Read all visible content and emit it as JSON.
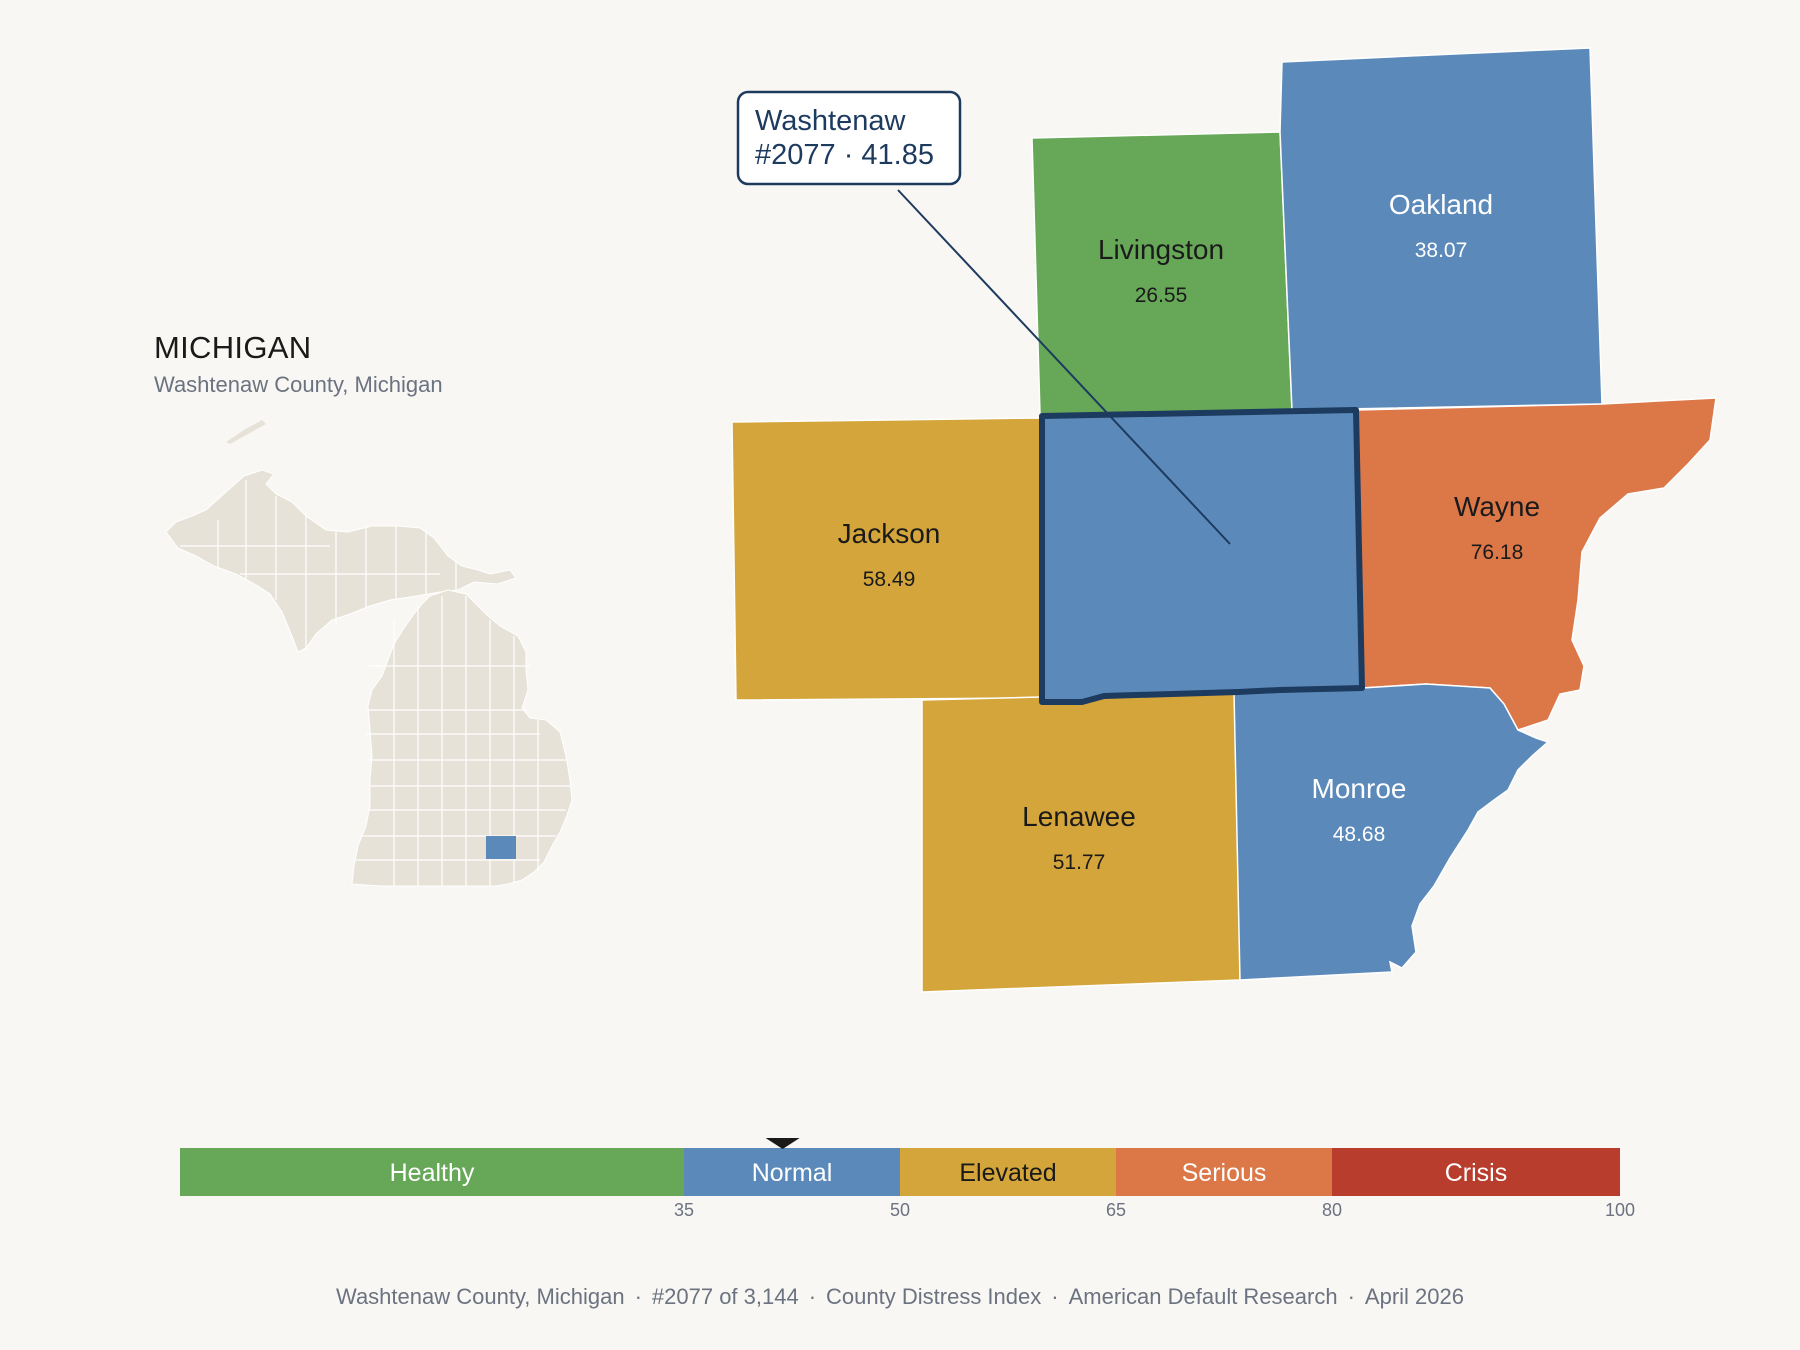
{
  "header": {
    "state": "MICHIGAN",
    "county_full": "Washtenaw County, Michigan"
  },
  "callout": {
    "line1": "Washtenaw",
    "line2": "#2077 · 41.85"
  },
  "counties": [
    {
      "id": "livingston",
      "name": "Livingston",
      "value": "26.55",
      "color": "#67a758",
      "label_color": "#1a1a1a"
    },
    {
      "id": "oakland",
      "name": "Oakland",
      "value": "38.07",
      "color": "#5b8aba",
      "label_color": "#ffffff"
    },
    {
      "id": "jackson",
      "name": "Jackson",
      "value": "58.49",
      "color": "#d4a53a",
      "label_color": "#1a1a1a"
    },
    {
      "id": "washtenaw",
      "name": "Washtenaw",
      "value": "41.85",
      "color": "#5b8aba",
      "label_color": "#ffffff"
    },
    {
      "id": "wayne",
      "name": "Wayne",
      "value": "76.18",
      "color": "#dc7748",
      "label_color": "#1a1a1a"
    },
    {
      "id": "lenawee",
      "name": "Lenawee",
      "value": "51.77",
      "color": "#d4a53a",
      "label_color": "#1a1a1a"
    },
    {
      "id": "monroe",
      "name": "Monroe",
      "value": "48.68",
      "color": "#5b8aba",
      "label_color": "#ffffff"
    }
  ],
  "scale": {
    "min": 0,
    "max": 100,
    "marker_value": 41.85,
    "bands": [
      {
        "label": "Healthy",
        "from": 0,
        "to": 35,
        "color": "#67a758",
        "text_color": "#ffffff"
      },
      {
        "label": "Normal",
        "from": 35,
        "to": 50,
        "color": "#5b8aba",
        "text_color": "#ffffff"
      },
      {
        "label": "Elevated",
        "from": 50,
        "to": 65,
        "color": "#d4a53a",
        "text_color": "#1a1a1a"
      },
      {
        "label": "Serious",
        "from": 65,
        "to": 80,
        "color": "#dc7748",
        "text_color": "#ffffff"
      },
      {
        "label": "Crisis",
        "from": 80,
        "to": 100,
        "color": "#b93d2c",
        "text_color": "#ffffff"
      }
    ],
    "ticks": [
      "35",
      "50",
      "65",
      "80",
      "100"
    ]
  },
  "footer": {
    "parts": [
      "Washtenaw County, Michigan",
      "#2077 of 3,144",
      "County Distress Index",
      "American Default Research",
      "April 2026"
    ],
    "separator": "·"
  },
  "colors": {
    "highlight_border": "#1d3a5f",
    "state_fill": "#e7e2d7",
    "background": "#f9f7f3"
  }
}
